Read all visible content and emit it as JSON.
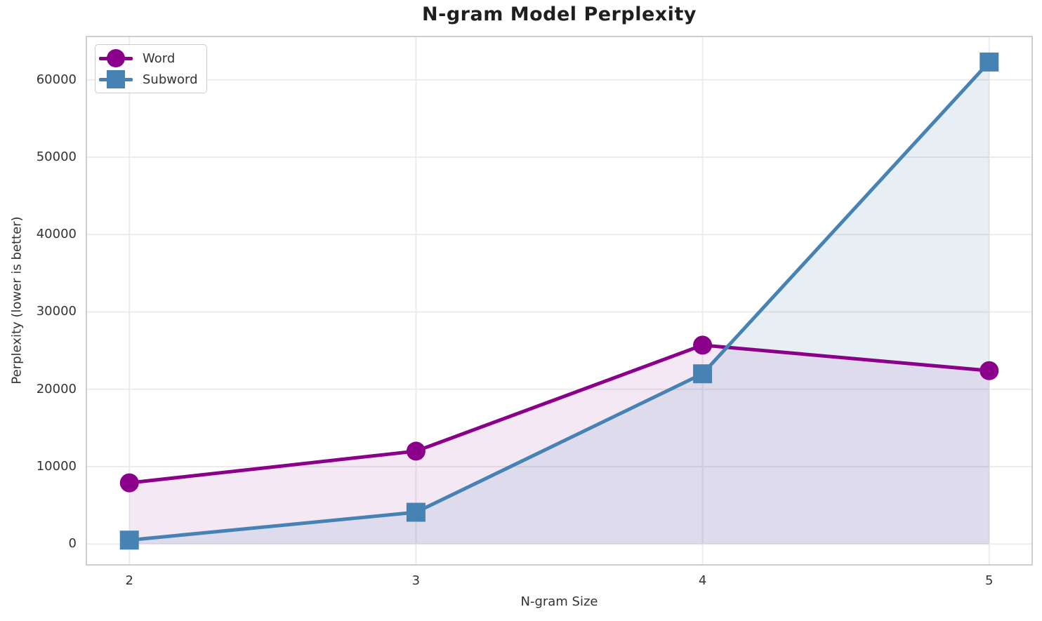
{
  "chart_data": {
    "type": "line",
    "title": "N-gram Model Perplexity",
    "xlabel": "N-gram Size",
    "ylabel": "Perplexity (lower is better)",
    "x": [
      2,
      3,
      4,
      5
    ],
    "series": [
      {
        "name": "Word",
        "marker": "circle",
        "color": "#8B008B",
        "fill_opacity": 0.09,
        "values": [
          7900,
          12000,
          25700,
          22400
        ]
      },
      {
        "name": "Subword",
        "marker": "square",
        "color": "#4682B4",
        "fill_opacity": 0.13,
        "values": [
          500,
          4100,
          22000,
          62300
        ]
      }
    ],
    "fill_to_zero": true,
    "grid": true,
    "legend_position": "upper-left",
    "xticks": [
      2,
      3,
      4,
      5
    ],
    "yticks": [
      0,
      10000,
      20000,
      30000,
      40000,
      50000,
      60000
    ],
    "xlim": [
      1.85,
      5.15
    ],
    "ylim": [
      -2700,
      65600
    ],
    "style": {
      "grid_color": "#ececec",
      "spine_color": "#c9c9c9",
      "text_color": "#333333",
      "title_color": "#1f1f1f",
      "background": "#ffffff"
    }
  }
}
